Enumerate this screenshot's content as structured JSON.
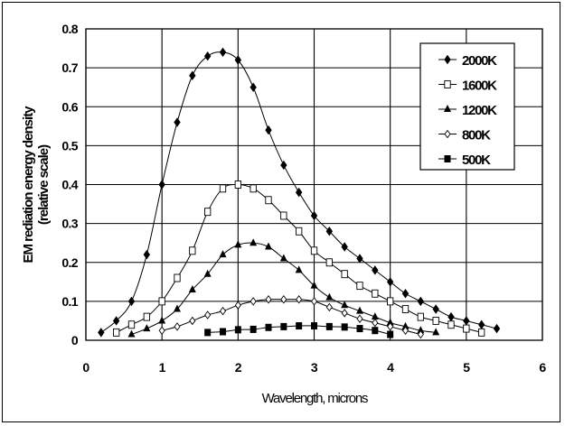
{
  "chart_data": {
    "type": "line",
    "title": "",
    "xlabel": "Wavelength, microns",
    "ylabel_line1": "EM rediation energy density",
    "ylabel_line2": "(relative scale)",
    "xlim": [
      0,
      6
    ],
    "ylim": [
      0,
      0.8
    ],
    "x_ticks": [
      "0",
      "1",
      "2",
      "3",
      "4",
      "5",
      "6"
    ],
    "y_ticks": [
      "0",
      "0.1",
      "0.2",
      "0.3",
      "0.4",
      "0.5",
      "0.6",
      "0.7",
      "0.8"
    ],
    "grid": true,
    "legend_position": "upper right",
    "series": [
      {
        "name": "2000K",
        "marker": "diamond-filled",
        "x": [
          0.2,
          0.4,
          0.6,
          0.8,
          1.0,
          1.2,
          1.4,
          1.6,
          1.8,
          2.0,
          2.2,
          2.4,
          2.6,
          2.8,
          3.0,
          3.2,
          3.4,
          3.6,
          3.8,
          4.0,
          4.2,
          4.4,
          4.6,
          4.8,
          5.0,
          5.2,
          5.4
        ],
        "values": [
          0.02,
          0.05,
          0.1,
          0.22,
          0.4,
          0.56,
          0.68,
          0.73,
          0.74,
          0.72,
          0.65,
          0.54,
          0.45,
          0.38,
          0.32,
          0.28,
          0.24,
          0.21,
          0.18,
          0.15,
          0.12,
          0.1,
          0.08,
          0.06,
          0.05,
          0.04,
          0.03
        ]
      },
      {
        "name": "1600K",
        "marker": "square-open",
        "x": [
          0.4,
          0.6,
          0.8,
          1.0,
          1.2,
          1.4,
          1.6,
          1.8,
          2.0,
          2.2,
          2.4,
          2.6,
          2.8,
          3.0,
          3.2,
          3.4,
          3.6,
          3.8,
          4.0,
          4.2,
          4.4,
          4.6,
          4.8,
          5.0,
          5.2
        ],
        "values": [
          0.02,
          0.04,
          0.06,
          0.1,
          0.16,
          0.23,
          0.33,
          0.39,
          0.4,
          0.39,
          0.36,
          0.32,
          0.28,
          0.23,
          0.2,
          0.17,
          0.14,
          0.12,
          0.1,
          0.08,
          0.06,
          0.05,
          0.04,
          0.03,
          0.02
        ]
      },
      {
        "name": "1200K",
        "marker": "triangle-filled",
        "x": [
          0.6,
          0.8,
          1.0,
          1.2,
          1.4,
          1.6,
          1.8,
          2.0,
          2.2,
          2.4,
          2.6,
          2.8,
          3.0,
          3.2,
          3.4,
          3.6,
          3.8,
          4.0,
          4.2,
          4.4,
          4.6
        ],
        "values": [
          0.015,
          0.03,
          0.05,
          0.08,
          0.13,
          0.17,
          0.22,
          0.245,
          0.25,
          0.24,
          0.21,
          0.18,
          0.14,
          0.11,
          0.09,
          0.075,
          0.06,
          0.045,
          0.035,
          0.025,
          0.02
        ]
      },
      {
        "name": "800K",
        "marker": "diamond-open",
        "x": [
          1.0,
          1.2,
          1.4,
          1.6,
          1.8,
          2.0,
          2.2,
          2.4,
          2.6,
          2.8,
          3.0,
          3.2,
          3.4,
          3.6,
          3.8,
          4.0,
          4.2,
          4.4
        ],
        "values": [
          0.025,
          0.035,
          0.05,
          0.065,
          0.075,
          0.09,
          0.1,
          0.105,
          0.105,
          0.105,
          0.1,
          0.085,
          0.07,
          0.055,
          0.045,
          0.035,
          0.025,
          0.015
        ]
      },
      {
        "name": "500K",
        "marker": "square-filled",
        "x": [
          1.6,
          1.8,
          2.0,
          2.2,
          2.4,
          2.6,
          2.8,
          3.0,
          3.2,
          3.4,
          3.6,
          3.8,
          4.0
        ],
        "values": [
          0.02,
          0.022,
          0.027,
          0.028,
          0.033,
          0.035,
          0.037,
          0.037,
          0.035,
          0.034,
          0.03,
          0.025,
          0.015
        ]
      }
    ]
  },
  "colors": {
    "line": "#000000",
    "background": "#ffffff",
    "grid": "#000000"
  }
}
